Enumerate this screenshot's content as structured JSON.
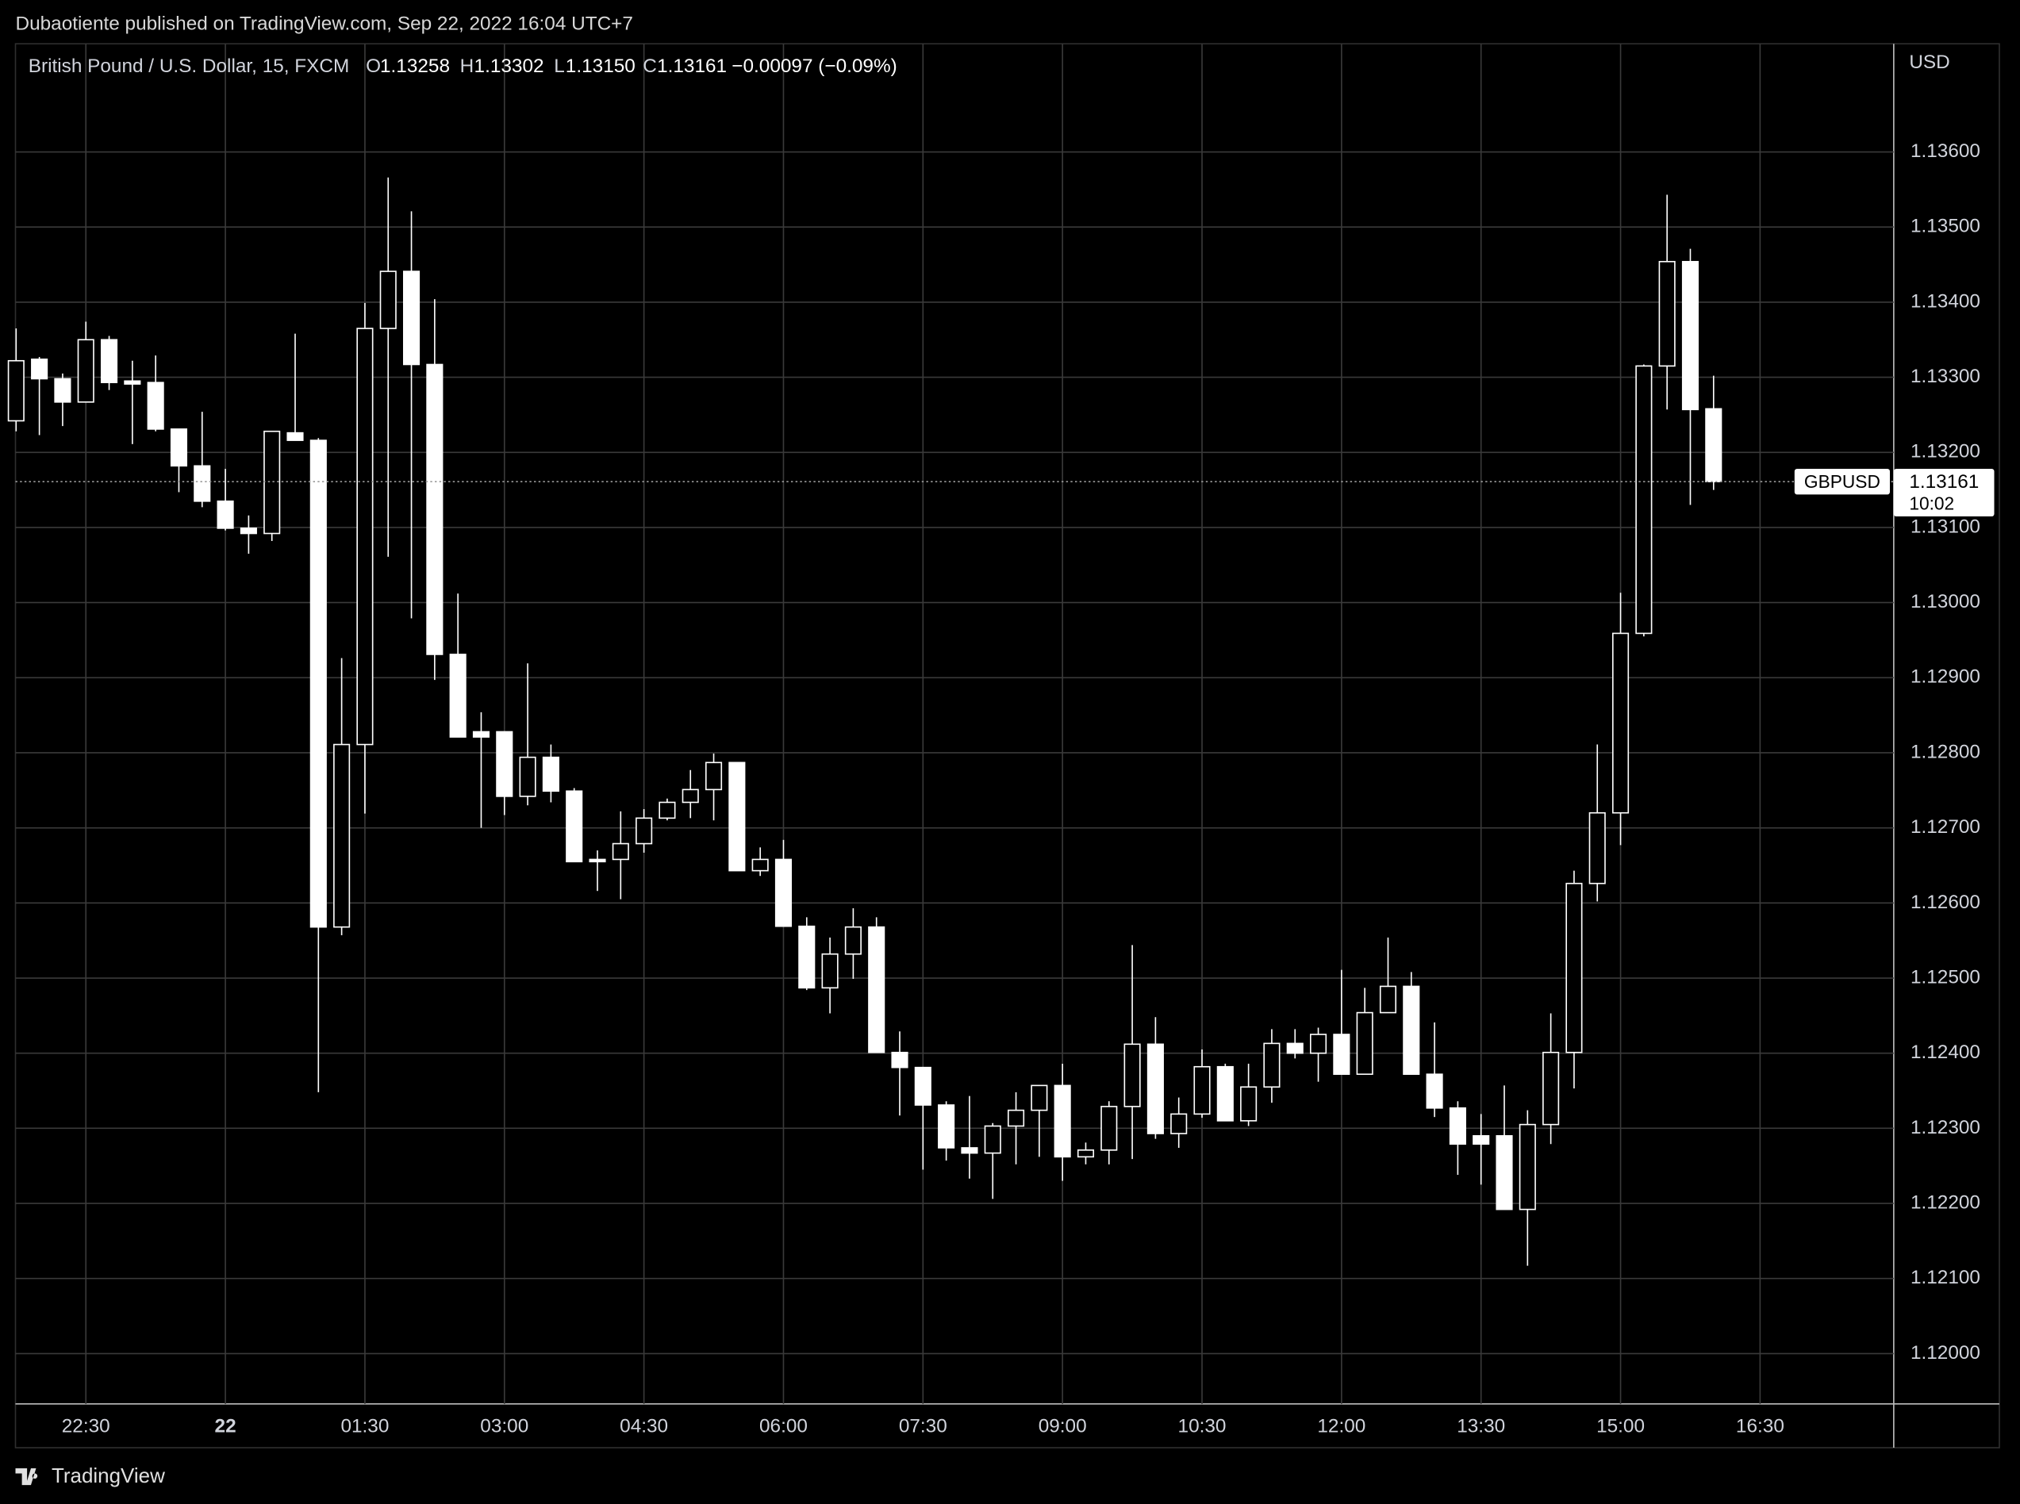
{
  "header": {
    "publisher": "Dubaotiente published on TradingView.com, Sep 22, 2022 16:04 UTC+7"
  },
  "footer": {
    "brand": "TradingView"
  },
  "chart_data": {
    "type": "candlestick",
    "legend": {
      "name": "British Pound / U.S. Dollar, 15, FXCM",
      "o": "O",
      "open": "1.13258",
      "h": "H",
      "high": "1.13302",
      "l": "L",
      "low": "1.13150",
      "c": "C",
      "close": "1.13161",
      "change": "−0.00097 (−0.09%)"
    },
    "currency": "USD",
    "price_label": {
      "symbol": "GBPUSD",
      "countdown": "10:02"
    },
    "color": "#ffffff",
    "grid": true,
    "categories": [
      null,
      null,
      null,
      "22:30",
      null,
      null,
      null,
      null,
      null,
      "22",
      null,
      null,
      null,
      null,
      null,
      "01:30",
      null,
      null,
      null,
      null,
      null,
      "03:00",
      null,
      null,
      null,
      null,
      null,
      "04:30",
      null,
      null,
      null,
      null,
      null,
      "06:00",
      null,
      null,
      null,
      null,
      null,
      "07:30",
      null,
      null,
      null,
      null,
      null,
      "09:00",
      null,
      null,
      null,
      null,
      null,
      "10:30",
      null,
      null,
      null,
      null,
      null,
      "12:00",
      null,
      null,
      null,
      null,
      null,
      "13:30",
      null,
      null,
      null,
      null,
      null,
      "15:00",
      null,
      null,
      null,
      null,
      null,
      "16:30"
    ],
    "open": [
      1.13242,
      1.13324,
      1.13298,
      1.13267,
      1.1335,
      1.13295,
      1.13293,
      1.13231,
      1.13182,
      1.13135,
      1.13099,
      1.13092,
      1.13226,
      1.13216,
      1.12568,
      1.12811,
      1.13365,
      1.13441,
      1.13317,
      1.12931,
      1.12828,
      1.12828,
      1.12742,
      1.12794,
      1.12749,
      1.12658,
      1.12658,
      1.12679,
      1.12713,
      1.12734,
      1.12751,
      1.12787,
      1.12643,
      1.12658,
      1.12569,
      1.12487,
      1.12532,
      1.12568,
      1.12401,
      1.12381,
      1.12331,
      1.12274,
      1.12267,
      1.12303,
      1.12324,
      1.12357,
      1.12262,
      1.12271,
      1.12329,
      1.12412,
      1.12293,
      1.12319,
      1.12382,
      1.1231,
      1.12355,
      1.12413,
      1.124,
      1.12425,
      1.12372,
      1.12454,
      1.12489,
      1.12372,
      1.12327,
      1.1229,
      1.1229,
      1.12192,
      1.12305,
      1.12401,
      1.12626,
      1.1272,
      1.12959,
      1.13315,
      1.13454,
      1.13258,
      null,
      null
    ],
    "high": [
      1.13365,
      1.13327,
      1.13305,
      1.13374,
      1.13355,
      1.13322,
      1.13329,
      1.13231,
      1.13254,
      1.13178,
      1.13116,
      1.13228,
      1.13358,
      1.13219,
      1.12926,
      1.13399,
      1.13566,
      1.13521,
      1.13404,
      1.13012,
      1.12854,
      1.12828,
      1.12919,
      1.12811,
      1.12753,
      1.1267,
      1.12722,
      1.12725,
      1.12739,
      1.12777,
      1.12799,
      1.12787,
      1.12674,
      1.12684,
      1.12581,
      1.12554,
      1.12593,
      1.12581,
      1.12429,
      1.12381,
      1.12336,
      1.12343,
      1.12307,
      1.12348,
      1.12357,
      1.12386,
      1.12281,
      1.12336,
      1.12544,
      1.12448,
      1.12341,
      1.12405,
      1.12386,
      1.12386,
      1.12432,
      1.12432,
      1.12434,
      1.12511,
      1.12487,
      1.12554,
      1.12508,
      1.12441,
      1.12336,
      1.12319,
      1.12357,
      1.12324,
      1.12453,
      1.12643,
      1.12811,
      1.13013,
      1.13317,
      1.13543,
      1.13471,
      1.13302,
      null,
      null
    ],
    "low": [
      1.13228,
      1.13223,
      1.13235,
      1.13267,
      1.13283,
      1.13211,
      1.13228,
      1.13147,
      1.13127,
      1.13096,
      1.13065,
      1.13082,
      1.13216,
      1.12348,
      1.12557,
      1.12719,
      1.13061,
      1.12979,
      1.12897,
      1.12821,
      1.127,
      1.12717,
      1.1273,
      1.12734,
      1.12655,
      1.12616,
      1.12605,
      1.12667,
      1.1271,
      1.12713,
      1.1271,
      1.12643,
      1.12636,
      1.12569,
      1.12484,
      1.12453,
      1.12499,
      1.12401,
      1.12317,
      1.12245,
      1.12257,
      1.12233,
      1.12206,
      1.12252,
      1.12262,
      1.1223,
      1.12252,
      1.12252,
      1.12259,
      1.12286,
      1.12274,
      1.12314,
      1.1231,
      1.12303,
      1.12334,
      1.12393,
      1.12362,
      1.12372,
      1.12372,
      1.12454,
      1.12372,
      1.12315,
      1.12238,
      1.12225,
      1.12192,
      1.12117,
      1.12279,
      1.12353,
      1.12602,
      1.12677,
      1.12955,
      1.13257,
      1.1313,
      1.1315,
      null,
      null
    ],
    "close": [
      1.13322,
      1.13298,
      1.13267,
      1.1335,
      1.13293,
      1.13291,
      1.13231,
      1.13182,
      1.13135,
      1.13099,
      1.13092,
      1.13228,
      1.13216,
      1.12568,
      1.12811,
      1.13365,
      1.13441,
      1.13317,
      1.12931,
      1.12821,
      1.12821,
      1.12742,
      1.12794,
      1.12749,
      1.12655,
      1.12655,
      1.12679,
      1.12713,
      1.12734,
      1.12751,
      1.12787,
      1.12643,
      1.12658,
      1.12569,
      1.12487,
      1.12532,
      1.12568,
      1.12401,
      1.12381,
      1.12331,
      1.12274,
      1.12267,
      1.12303,
      1.12324,
      1.12357,
      1.12262,
      1.12271,
      1.12329,
      1.12412,
      1.12293,
      1.12319,
      1.12382,
      1.1231,
      1.12355,
      1.12413,
      1.124,
      1.12425,
      1.12372,
      1.12454,
      1.12489,
      1.12372,
      1.12327,
      1.12279,
      1.12279,
      1.12192,
      1.12305,
      1.12401,
      1.12626,
      1.1272,
      1.12959,
      1.13315,
      1.13454,
      1.13257,
      1.13161,
      null,
      null
    ],
    "ylim": [
      1.11933,
      1.13744
    ],
    "yticks": [
      {
        "value": 1.12,
        "label": "1.12000"
      },
      {
        "value": 1.121,
        "label": "1.12100"
      },
      {
        "value": 1.122,
        "label": "1.12200"
      },
      {
        "value": 1.123,
        "label": "1.12300"
      },
      {
        "value": 1.124,
        "label": "1.12400"
      },
      {
        "value": 1.125,
        "label": "1.12500"
      },
      {
        "value": 1.126,
        "label": "1.12600"
      },
      {
        "value": 1.127,
        "label": "1.12700"
      },
      {
        "value": 1.128,
        "label": "1.12800"
      },
      {
        "value": 1.129,
        "label": "1.12900"
      },
      {
        "value": 1.13,
        "label": "1.13000"
      },
      {
        "value": 1.131,
        "label": "1.13100"
      },
      {
        "value": 1.132,
        "label": "1.13200"
      },
      {
        "value": 1.133,
        "label": "1.13300"
      },
      {
        "value": 1.134,
        "label": "1.13400"
      },
      {
        "value": 1.135,
        "label": "1.13500"
      },
      {
        "value": 1.136,
        "label": "1.13600"
      }
    ]
  }
}
